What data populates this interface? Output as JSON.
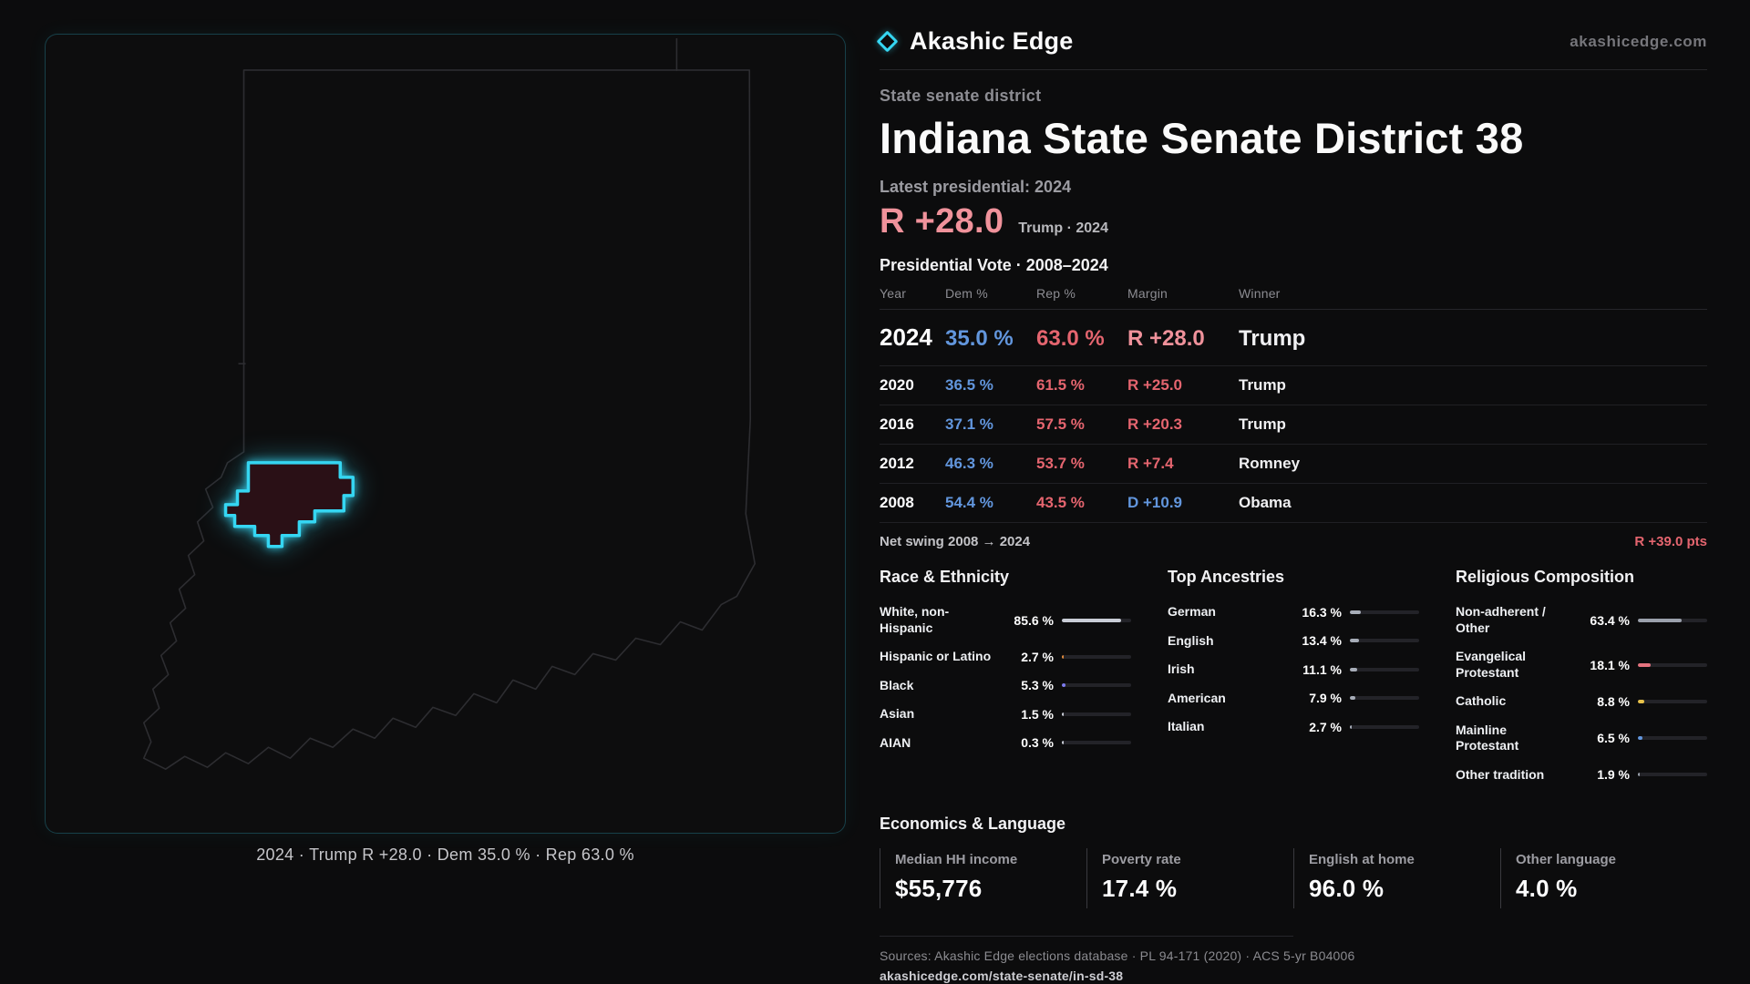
{
  "colors": {
    "accent_cyan": "#35d6f2",
    "dem_blue": "#6296dd",
    "rep_red": "#e5656f",
    "rep_pink": "#f0929b"
  },
  "brand": {
    "name": "Akashic Edge",
    "domain": "akashicedge.com"
  },
  "district": {
    "type_label": "State senate district",
    "title": "Indiana State Senate District 38",
    "latest_label": "Latest presidential: 2024",
    "headline_margin": "R +28.0",
    "headline_context": "Trump · 2024"
  },
  "map": {
    "caption": "2024 · Trump R +28.0 · Dem 35.0 % · Rep 63.0 %"
  },
  "vote_table": {
    "title": "Presidential Vote · 2008–2024",
    "columns": [
      "Year",
      "Dem %",
      "Rep %",
      "Margin",
      "Winner"
    ],
    "rows": [
      {
        "year": "2024",
        "dem": "35.0 %",
        "rep": "63.0 %",
        "margin": "R +28.0",
        "margin_party": "R",
        "winner": "Trump"
      },
      {
        "year": "2020",
        "dem": "36.5 %",
        "rep": "61.5 %",
        "margin": "R +25.0",
        "margin_party": "R",
        "winner": "Trump"
      },
      {
        "year": "2016",
        "dem": "37.1 %",
        "rep": "57.5 %",
        "margin": "R +20.3",
        "margin_party": "R",
        "winner": "Trump"
      },
      {
        "year": "2012",
        "dem": "46.3 %",
        "rep": "53.7 %",
        "margin": "R +7.4",
        "margin_party": "R",
        "winner": "Romney"
      },
      {
        "year": "2008",
        "dem": "54.4 %",
        "rep": "43.5 %",
        "margin": "D +10.9",
        "margin_party": "D",
        "winner": "Obama"
      }
    ],
    "net_swing_label": "Net swing 2008 → 2024",
    "net_swing_value": "R +39.0 pts"
  },
  "demographics": {
    "race": {
      "title": "Race & Ethnicity",
      "rows": [
        {
          "label": "White, non-Hispanic",
          "value": "85.6 %",
          "pct": 85.6,
          "color": "#c9cdd6"
        },
        {
          "label": "Hispanic or Latino",
          "value": "2.7 %",
          "pct": 2.7,
          "color": "#e08a3c"
        },
        {
          "label": "Black",
          "value": "5.3 %",
          "pct": 5.3,
          "color": "#7d7bf0"
        },
        {
          "label": "Asian",
          "value": "1.5 %",
          "pct": 1.5,
          "color": "#c9cdd6"
        },
        {
          "label": "AIAN",
          "value": "0.3 %",
          "pct": 0.3,
          "color": "#c9cdd6"
        }
      ]
    },
    "ancestries": {
      "title": "Top Ancestries",
      "rows": [
        {
          "label": "German",
          "value": "16.3 %",
          "pct": 16.3,
          "color": "#a7adb8"
        },
        {
          "label": "English",
          "value": "13.4 %",
          "pct": 13.4,
          "color": "#a7adb8"
        },
        {
          "label": "Irish",
          "value": "11.1 %",
          "pct": 11.1,
          "color": "#a7adb8"
        },
        {
          "label": "American",
          "value": "7.9 %",
          "pct": 7.9,
          "color": "#a7adb8"
        },
        {
          "label": "Italian",
          "value": "2.7 %",
          "pct": 2.7,
          "color": "#a7adb8"
        }
      ]
    },
    "religion": {
      "title": "Religious Composition",
      "rows": [
        {
          "label": "Non-adherent / Other",
          "value": "63.4 %",
          "pct": 63.4,
          "color": "#9ba1ac"
        },
        {
          "label": "Evangelical Protestant",
          "value": "18.1 %",
          "pct": 18.1,
          "color": "#e5737e"
        },
        {
          "label": "Catholic",
          "value": "8.8 %",
          "pct": 8.8,
          "color": "#e8c24a"
        },
        {
          "label": "Mainline Protestant",
          "value": "6.5 %",
          "pct": 6.5,
          "color": "#6296dd"
        },
        {
          "label": "Other tradition",
          "value": "1.9 %",
          "pct": 1.9,
          "color": "#9ba1ac"
        }
      ]
    }
  },
  "economics": {
    "title": "Economics & Language",
    "stats": [
      {
        "label": "Median HH income",
        "value": "$55,776"
      },
      {
        "label": "Poverty rate",
        "value": "17.4 %"
      },
      {
        "label": "English at home",
        "value": "96.0 %"
      },
      {
        "label": "Other language",
        "value": "4.0 %"
      }
    ]
  },
  "footer": {
    "sources": "Sources: Akashic Edge elections database · PL 94-171 (2020) · ACS 5-yr B04006",
    "permalink": "akashicedge.com/state-senate/in-sd-38"
  }
}
